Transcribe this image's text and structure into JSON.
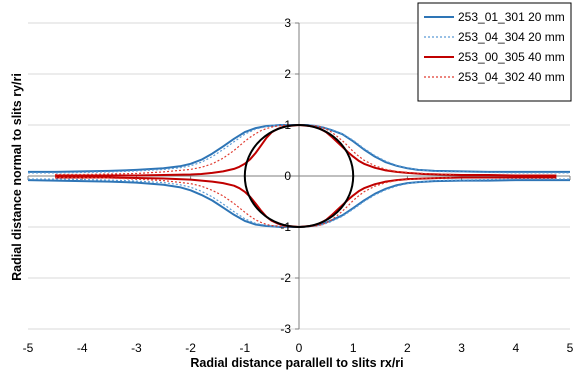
{
  "chart_data": {
    "type": "line",
    "title": "",
    "xlabel": "Radial distance parallell to slits rx/ri",
    "ylabel": "Radial distance normal to slits ry/ri",
    "xlim": [
      -5,
      5
    ],
    "ylim": [
      -3,
      3
    ],
    "x_ticks": [
      -5,
      -4,
      -3,
      -2,
      -1,
      0,
      1,
      2,
      3,
      4,
      5
    ],
    "y_ticks": [
      -3,
      -2,
      -1,
      0,
      1,
      2,
      3
    ],
    "grid": "horizontal",
    "legend_position": "top-right",
    "circle": {
      "center": [
        0,
        0
      ],
      "radius": 1,
      "color": "#000000"
    },
    "series": [
      {
        "name": "253_01_301 20 mm",
        "color": "#2e75b6",
        "style": "solid",
        "x": [
          -5.0,
          -4.5,
          -4.0,
          -3.5,
          -3.0,
          -2.5,
          -2.2,
          -2.0,
          -1.8,
          -1.6,
          -1.4,
          -1.2,
          -1.0,
          -0.8,
          -0.6,
          -0.45,
          -0.35,
          -0.25,
          -0.15,
          0.0,
          0.15,
          0.3,
          0.45,
          0.6,
          0.8,
          1.0,
          1.2,
          1.4,
          1.6,
          1.8,
          2.0,
          2.2,
          2.5,
          3.0,
          3.5,
          4.0,
          4.5,
          5.0
        ],
        "upper": [
          0.08,
          0.08,
          0.09,
          0.1,
          0.12,
          0.15,
          0.19,
          0.24,
          0.32,
          0.44,
          0.58,
          0.73,
          0.86,
          0.94,
          0.98,
          0.99,
          1.0,
          1.0,
          1.0,
          1.0,
          1.0,
          0.98,
          0.95,
          0.9,
          0.82,
          0.68,
          0.52,
          0.38,
          0.27,
          0.2,
          0.15,
          0.12,
          0.1,
          0.09,
          0.08,
          0.08,
          0.08,
          0.08
        ],
        "lower": [
          -0.08,
          -0.09,
          -0.1,
          -0.11,
          -0.13,
          -0.17,
          -0.22,
          -0.28,
          -0.37,
          -0.48,
          -0.62,
          -0.76,
          -0.88,
          -0.95,
          -0.98,
          -0.99,
          -1.0,
          -1.0,
          -1.0,
          -1.0,
          -0.99,
          -0.97,
          -0.93,
          -0.87,
          -0.77,
          -0.63,
          -0.48,
          -0.35,
          -0.25,
          -0.18,
          -0.14,
          -0.12,
          -0.1,
          -0.09,
          -0.09,
          -0.08,
          -0.08,
          -0.08
        ]
      },
      {
        "name": "253_04_304 20 mm",
        "color": "#5b9bd5",
        "style": "dotted",
        "x": [
          -5.0,
          -4.5,
          -4.0,
          -3.5,
          -3.0,
          -2.5,
          -2.2,
          -2.0,
          -1.8,
          -1.6,
          -1.4,
          -1.2,
          -1.0,
          -0.8,
          -0.6,
          -0.45,
          -0.3,
          -0.15,
          0.0,
          0.15,
          0.3,
          0.45,
          0.6,
          0.8,
          1.0,
          1.2,
          1.4,
          1.6,
          1.8,
          2.0,
          2.2,
          2.5,
          3.0,
          3.5,
          4.0,
          4.5,
          5.0
        ],
        "upper": [
          0.06,
          0.06,
          0.07,
          0.08,
          0.1,
          0.13,
          0.16,
          0.2,
          0.27,
          0.38,
          0.52,
          0.67,
          0.82,
          0.92,
          0.97,
          0.99,
          1.0,
          1.0,
          1.0,
          1.0,
          0.99,
          0.96,
          0.91,
          0.83,
          0.7,
          0.54,
          0.4,
          0.29,
          0.21,
          0.16,
          0.12,
          0.09,
          0.08,
          0.07,
          0.06,
          0.06,
          0.06
        ],
        "lower": [
          -0.06,
          -0.06,
          -0.07,
          -0.08,
          -0.1,
          -0.13,
          -0.17,
          -0.22,
          -0.3,
          -0.41,
          -0.55,
          -0.7,
          -0.84,
          -0.93,
          -0.97,
          -0.99,
          -1.0,
          -1.0,
          -1.0,
          -0.99,
          -0.98,
          -0.95,
          -0.89,
          -0.79,
          -0.65,
          -0.5,
          -0.37,
          -0.27,
          -0.2,
          -0.15,
          -0.12,
          -0.09,
          -0.08,
          -0.07,
          -0.06,
          -0.06,
          -0.06
        ]
      },
      {
        "name": "253_00_305 40 mm",
        "color": "#c00000",
        "style": "solid",
        "x": [
          -4.5,
          -4.0,
          -3.5,
          -3.0,
          -2.5,
          -2.0,
          -1.8,
          -1.6,
          -1.4,
          -1.2,
          -1.1,
          -1.0,
          -0.9,
          -0.8,
          -0.7,
          -0.6,
          -0.5,
          -0.4,
          -0.3,
          -0.2,
          -0.1,
          0.0,
          0.1,
          0.2,
          0.3,
          0.4,
          0.5,
          0.6,
          0.7,
          0.8,
          0.9,
          1.0,
          1.1,
          1.2,
          1.4,
          1.6,
          1.8,
          2.0,
          2.3,
          2.6,
          3.0,
          3.5,
          4.0,
          4.5,
          4.75
        ],
        "upper": [
          0.01,
          0.01,
          0.01,
          0.01,
          0.02,
          0.03,
          0.04,
          0.06,
          0.09,
          0.14,
          0.18,
          0.24,
          0.33,
          0.45,
          0.6,
          0.75,
          0.86,
          0.92,
          0.96,
          0.98,
          0.99,
          1.0,
          0.99,
          0.98,
          0.96,
          0.92,
          0.86,
          0.77,
          0.67,
          0.57,
          0.47,
          0.38,
          0.3,
          0.24,
          0.16,
          0.11,
          0.08,
          0.06,
          0.04,
          0.03,
          0.02,
          0.02,
          0.01,
          0.01,
          0.01
        ],
        "lower": [
          -0.03,
          -0.03,
          -0.03,
          -0.04,
          -0.05,
          -0.07,
          -0.09,
          -0.11,
          -0.14,
          -0.19,
          -0.24,
          -0.31,
          -0.41,
          -0.54,
          -0.68,
          -0.8,
          -0.88,
          -0.93,
          -0.96,
          -0.98,
          -0.99,
          -1.0,
          -0.99,
          -0.98,
          -0.96,
          -0.92,
          -0.86,
          -0.77,
          -0.67,
          -0.57,
          -0.47,
          -0.38,
          -0.3,
          -0.24,
          -0.16,
          -0.11,
          -0.08,
          -0.06,
          -0.05,
          -0.04,
          -0.03,
          -0.03,
          -0.03,
          -0.03,
          -0.03
        ]
      },
      {
        "name": "253_04_302 40 mm",
        "color": "#e03c31",
        "style": "dotted",
        "x": [
          -4.5,
          -4.0,
          -3.5,
          -3.0,
          -2.5,
          -2.0,
          -1.8,
          -1.6,
          -1.4,
          -1.2,
          -1.0,
          -0.9,
          -0.8,
          -0.7,
          -0.6,
          -0.5,
          -0.4,
          -0.3,
          -0.2,
          -0.1,
          0.0,
          0.1,
          0.2,
          0.3,
          0.4,
          0.5,
          0.6,
          0.7,
          0.8,
          0.9,
          1.0,
          1.1,
          1.2,
          1.4,
          1.6,
          1.8,
          2.0,
          2.3,
          2.6,
          2.85
        ],
        "upper": [
          0.03,
          0.03,
          0.04,
          0.05,
          0.08,
          0.13,
          0.17,
          0.24,
          0.35,
          0.5,
          0.68,
          0.76,
          0.83,
          0.89,
          0.93,
          0.96,
          0.98,
          0.99,
          1.0,
          1.0,
          1.0,
          1.0,
          0.99,
          0.98,
          0.96,
          0.92,
          0.86,
          0.78,
          0.69,
          0.59,
          0.48,
          0.39,
          0.31,
          0.2,
          0.13,
          0.09,
          0.07,
          0.05,
          0.04,
          0.03
        ],
        "lower": [
          -0.03,
          -0.03,
          -0.04,
          -0.06,
          -0.09,
          -0.15,
          -0.2,
          -0.28,
          -0.39,
          -0.54,
          -0.71,
          -0.79,
          -0.86,
          -0.91,
          -0.95,
          -0.97,
          -0.98,
          -0.99,
          -1.0,
          -1.0,
          -1.0,
          -1.0,
          -0.99,
          -0.98,
          -0.96,
          -0.92,
          -0.86,
          -0.78,
          -0.69,
          -0.59,
          -0.48,
          -0.39,
          -0.31,
          -0.2,
          -0.13,
          -0.09,
          -0.07,
          -0.05,
          -0.04,
          -0.03
        ]
      }
    ]
  }
}
